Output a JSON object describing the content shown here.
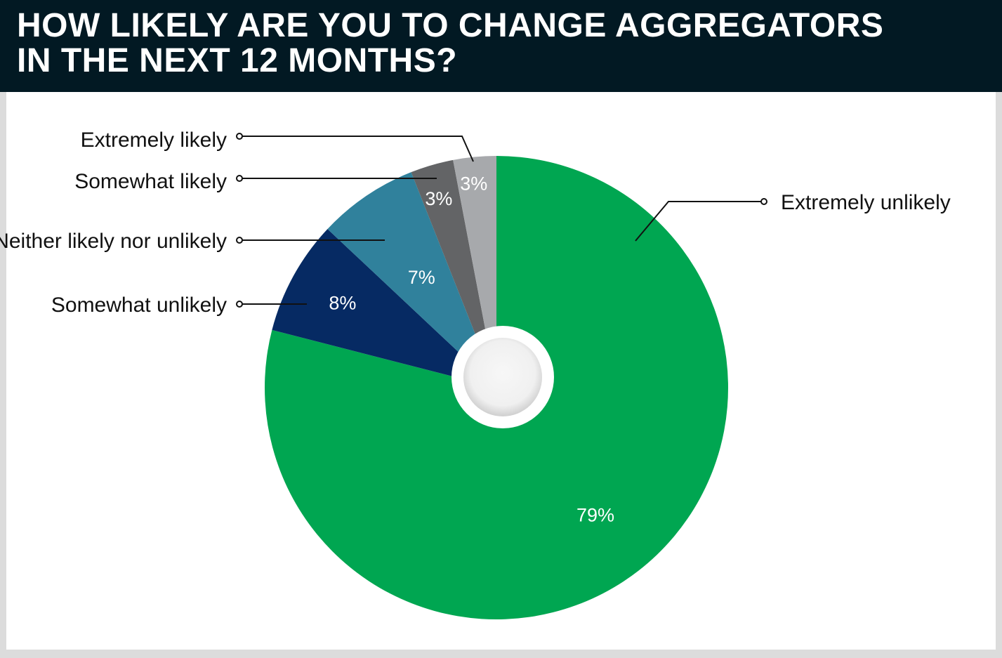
{
  "header": {
    "title_line1": "HOW LIKELY ARE YOU TO CHANGE AGGREGATORS",
    "title_line2": "IN THE NEXT 12 MONTHS?"
  },
  "chart_data": {
    "type": "pie",
    "title": "HOW LIKELY ARE YOU TO CHANGE AGGREGATORS IN THE NEXT 12 MONTHS?",
    "categories": [
      "Extremely unlikely",
      "Somewhat unlikely",
      "Neither likely nor unlikely",
      "Somewhat likely",
      "Extremely likely"
    ],
    "values": [
      79,
      8,
      7,
      3,
      3
    ],
    "value_labels": [
      "79%",
      "8%",
      "7%",
      "3%",
      "3%"
    ],
    "colors": [
      "#00a651",
      "#062a63",
      "#30819c",
      "#636466",
      "#a7a9ac"
    ],
    "donut_hole": true,
    "start": "12 o'clock, clockwise"
  }
}
